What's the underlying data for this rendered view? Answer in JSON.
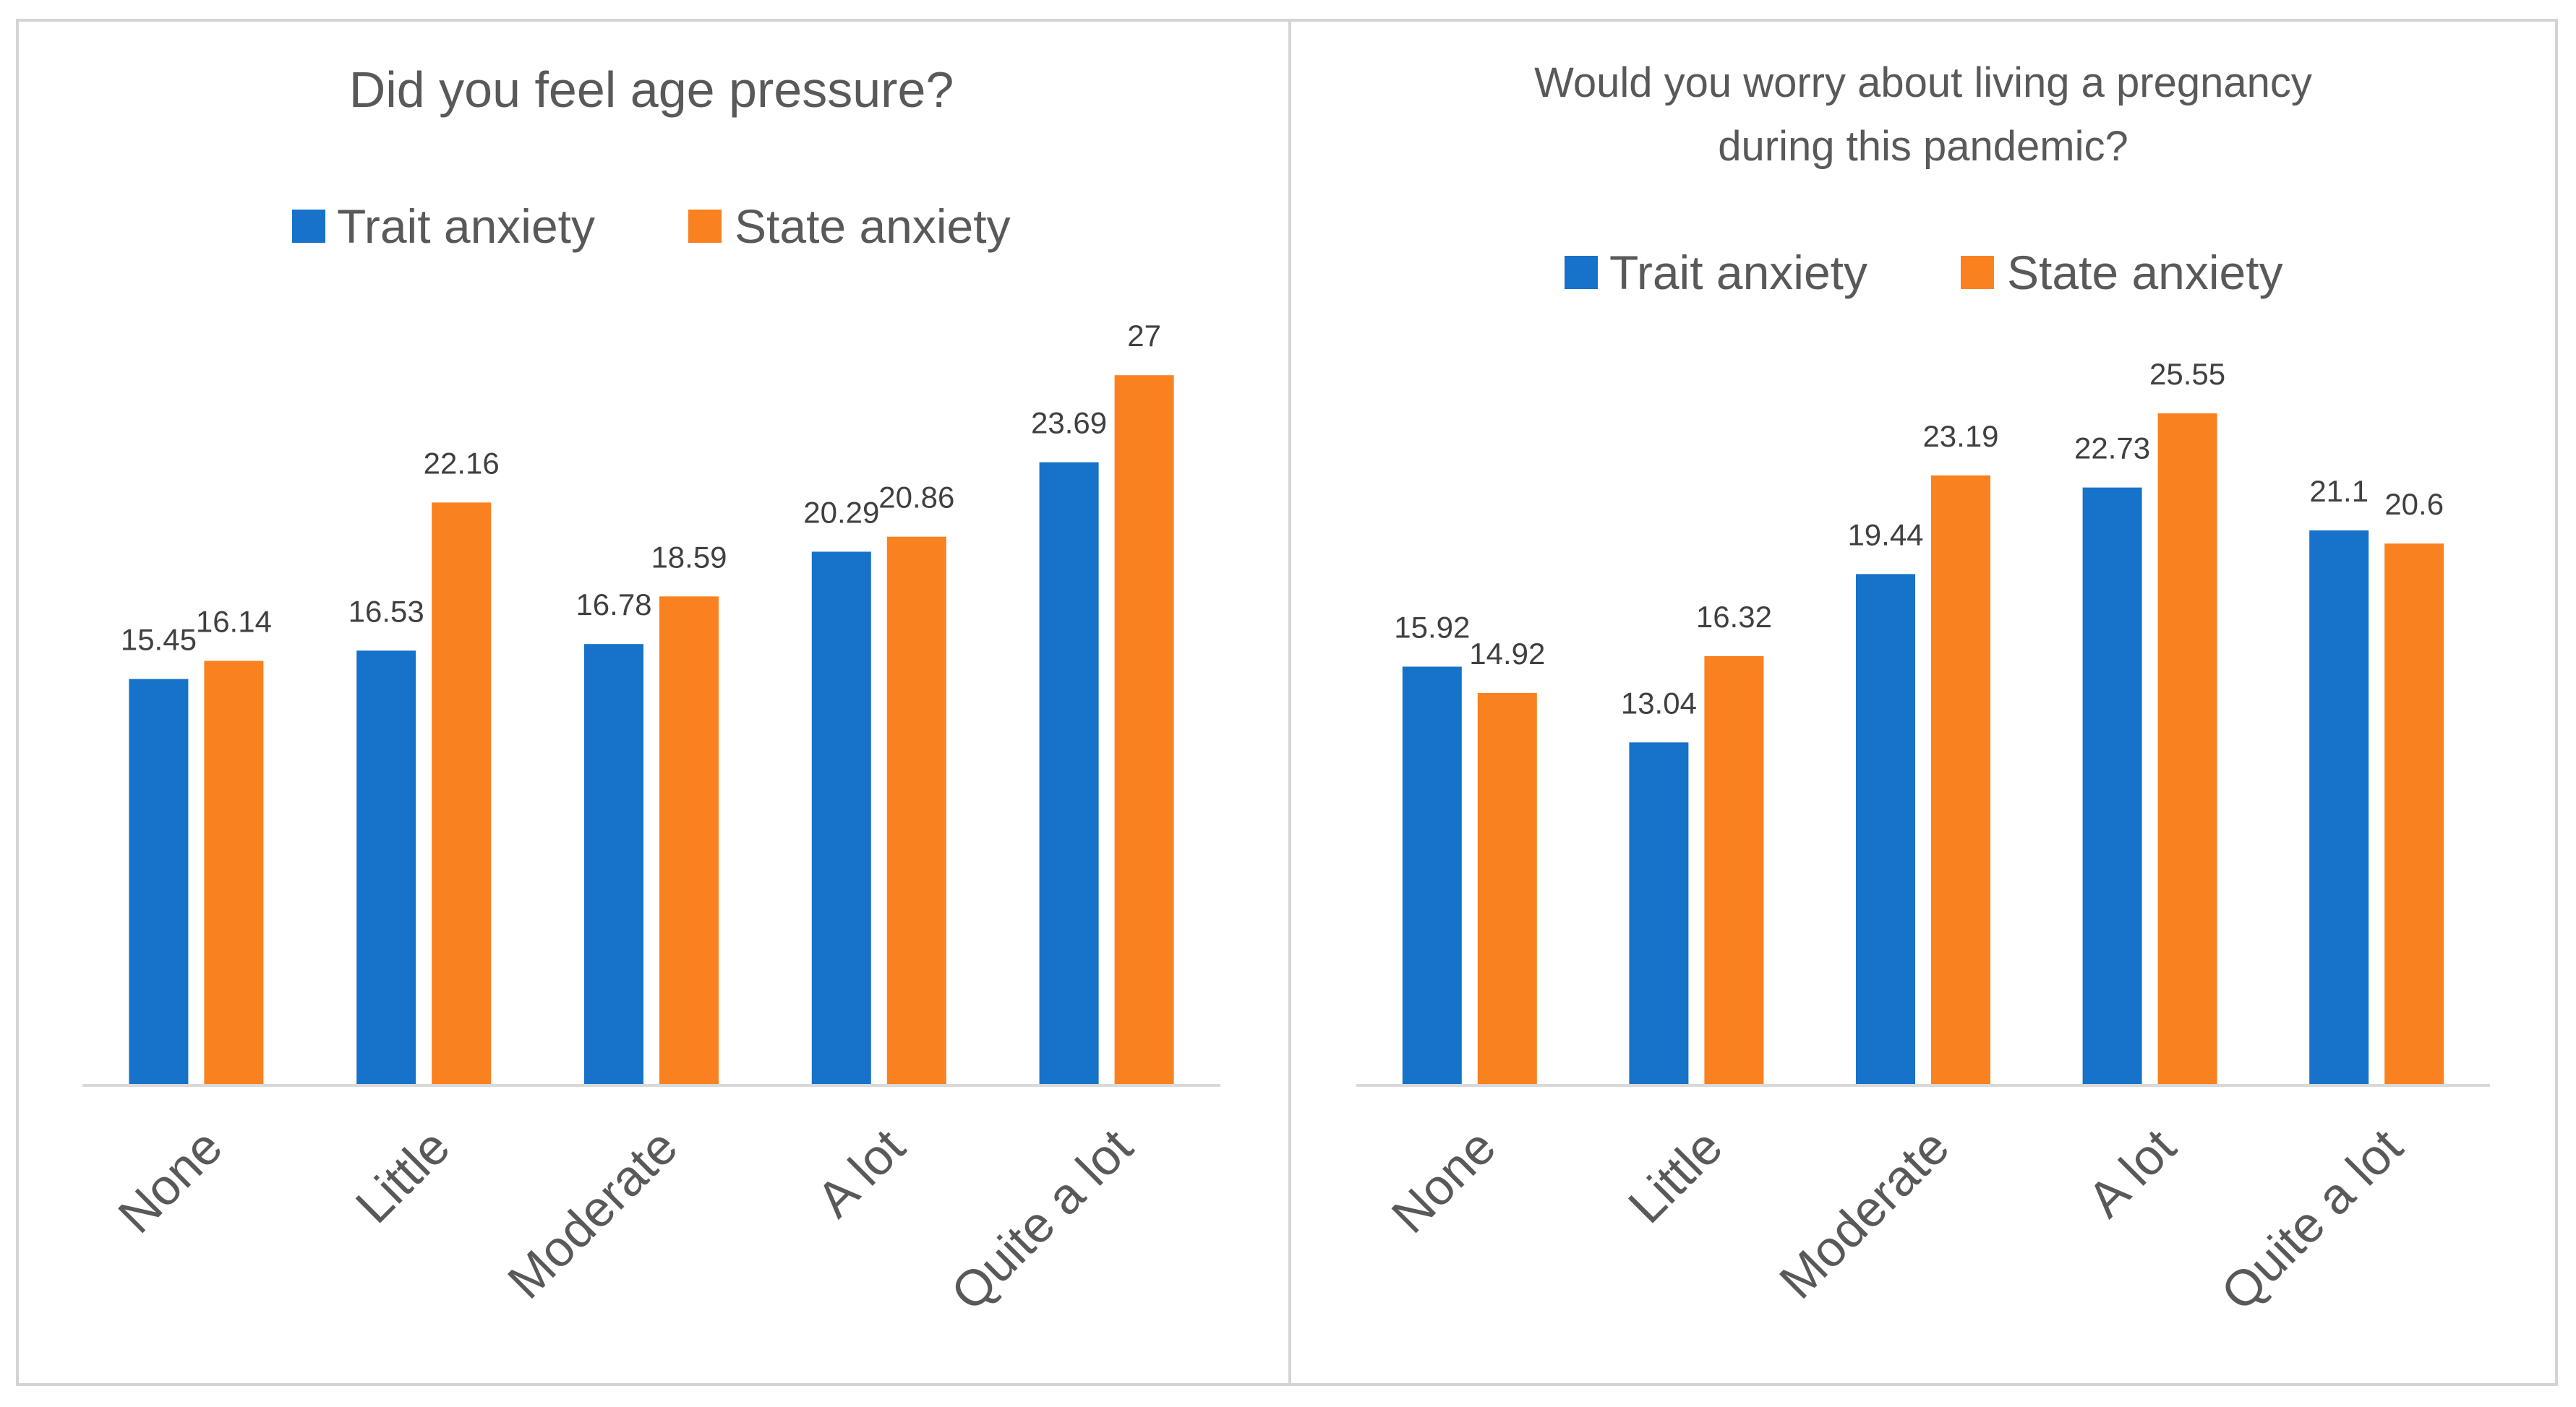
{
  "colors": {
    "trait": "#1772C9",
    "state": "#F98120",
    "axis": "#D9D9D9",
    "panel_border": "#D4D4D4",
    "title_text": "#595959",
    "tick_text": "#595959",
    "label_text": "#404040"
  },
  "chart_data": [
    {
      "type": "bar",
      "title": "Did you feel age pressure?",
      "legend_position": "top",
      "categories": [
        "None",
        "Little",
        "Moderate",
        "A lot",
        "Quite a lot"
      ],
      "series": [
        {
          "name": "Trait anxiety",
          "values": [
            15.45,
            16.53,
            16.78,
            20.29,
            23.69
          ]
        },
        {
          "name": "State anxiety",
          "values": [
            16.14,
            22.16,
            18.59,
            20.86,
            27
          ]
        }
      ],
      "data_labels": [
        [
          "15.45",
          "16.53",
          "16.78",
          "20.29",
          "23.69"
        ],
        [
          "16.14",
          "22.16",
          "18.59",
          "20.86",
          "27"
        ]
      ],
      "xlabel": "",
      "ylabel": "",
      "ylim": [
        0,
        30
      ],
      "grid": false
    },
    {
      "type": "bar",
      "title": "Would you worry about living a pregnancy during this pandemic?",
      "title_lines": [
        "Would you worry about living a pregnancy",
        "during this pandemic?"
      ],
      "legend_position": "top",
      "categories": [
        "None",
        "Little",
        "Moderate",
        "A lot",
        "Quite a lot"
      ],
      "series": [
        {
          "name": "Trait anxiety",
          "values": [
            15.92,
            13.04,
            19.44,
            22.73,
            21.1
          ]
        },
        {
          "name": "State anxiety",
          "values": [
            14.92,
            16.32,
            23.19,
            25.55,
            20.6
          ]
        }
      ],
      "data_labels": [
        [
          "15.92",
          "13.04",
          "19.44",
          "22.73",
          "21.1"
        ],
        [
          "14.92",
          "16.32",
          "23.19",
          "25.55",
          "20.6"
        ]
      ],
      "xlabel": "",
      "ylabel": "",
      "ylim": [
        0,
        30
      ],
      "grid": false
    }
  ]
}
